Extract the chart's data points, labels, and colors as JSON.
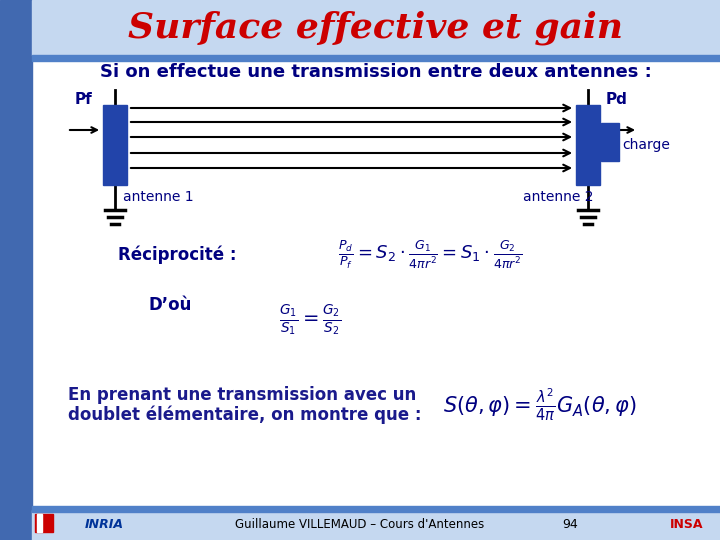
{
  "title": "Surface effective et gain",
  "subtitle": "Si on effectue une transmission entre deux antennes :",
  "title_color": "#cc0000",
  "title_fontsize": 26,
  "subtitle_fontsize": 13,
  "text_color": "#000080",
  "body_text_color": "#1a1a8c",
  "slide_bg": "#ffffff",
  "left_stripe_color": "#4169b0",
  "top_bar_color": "#5080c8",
  "header_bg": "#c5d8f0",
  "footer_bg": "#c5d8f0",
  "footer_text": "Guillaume VILLEMAUD – Cours d'Antennes",
  "footer_page": "94",
  "antenna_color": "#2244aa",
  "label_Pf": "Pf",
  "label_Pd": "Pd",
  "label_charge": "charge",
  "label_ant1": "antenne 1",
  "label_ant2": "antenne 2",
  "recip_label": "Réciprocité :",
  "dou_label": "D’où",
  "bottom_text1": "En prenant une transmission avec un",
  "bottom_text2": "doublet élémentaire, on montre que :"
}
